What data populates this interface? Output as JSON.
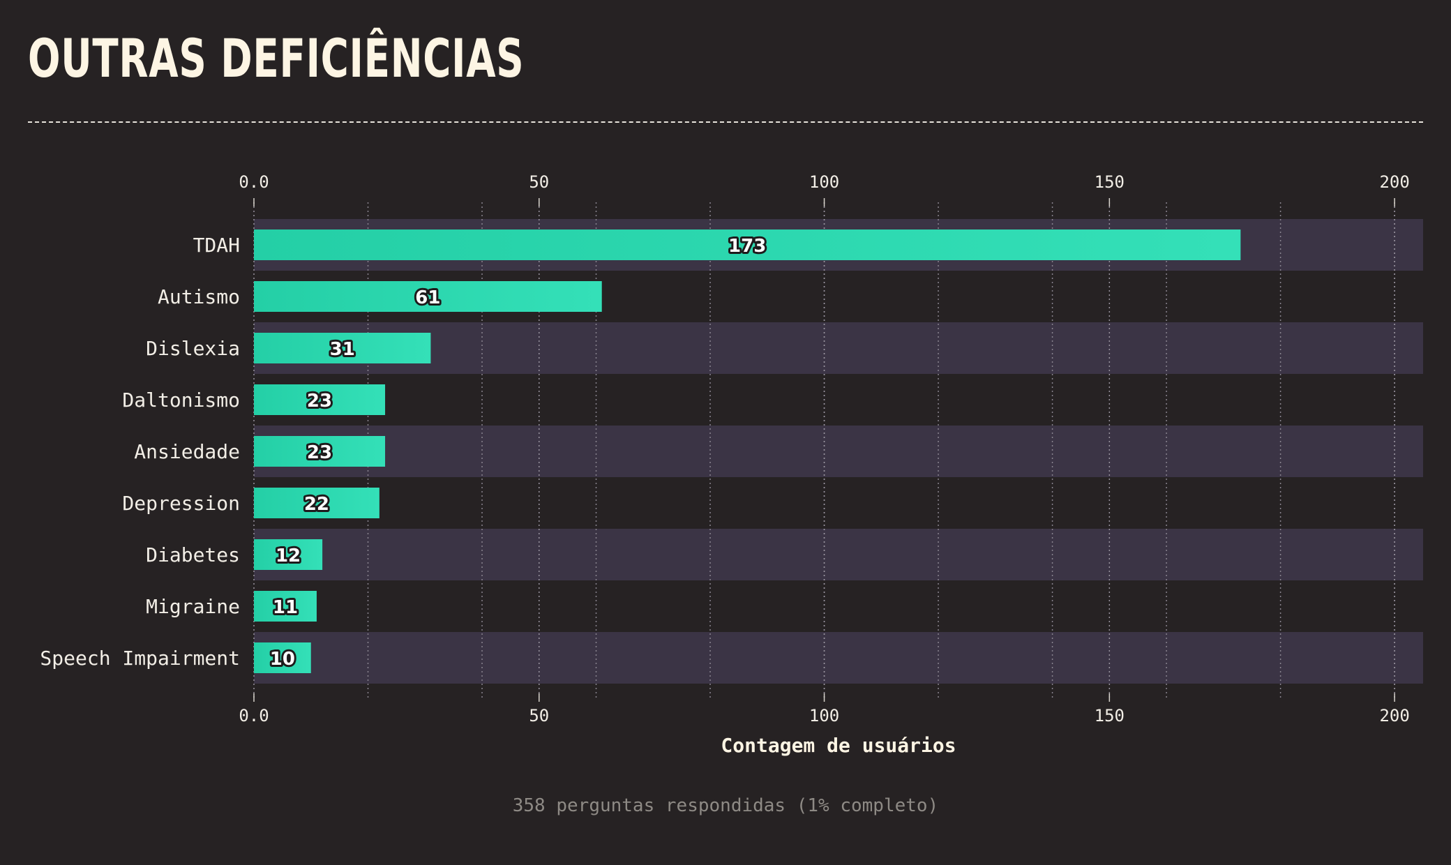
{
  "header": {
    "title": "OUTRAS DEFICIÊNCIAS"
  },
  "footer": {
    "note": "358 perguntas respondidas (1% completo)"
  },
  "colors": {
    "background": "#262223",
    "band": "#3b3445",
    "bar_start": "#24cfa6",
    "bar_end": "#34e0b8",
    "text": "#f2eee6",
    "title": "#fdf5e4"
  },
  "chart_data": {
    "type": "bar",
    "orientation": "horizontal",
    "categories": [
      "TDAH",
      "Autismo",
      "Dislexia",
      "Daltonismo",
      "Ansiedade",
      "Depression",
      "Diabetes",
      "Migraine",
      "Speech Impairment"
    ],
    "values": [
      173,
      61,
      31,
      23,
      23,
      22,
      12,
      11,
      10
    ],
    "xlabel": "Contagem de usuários",
    "xlim": [
      0,
      205
    ],
    "ticks": [
      0,
      50,
      100,
      150,
      200
    ],
    "tick_labels": [
      "0.0",
      "50",
      "100",
      "150",
      "200"
    ],
    "minor_grid_step": 20,
    "grid": true,
    "axis_on_top_and_bottom": true
  }
}
